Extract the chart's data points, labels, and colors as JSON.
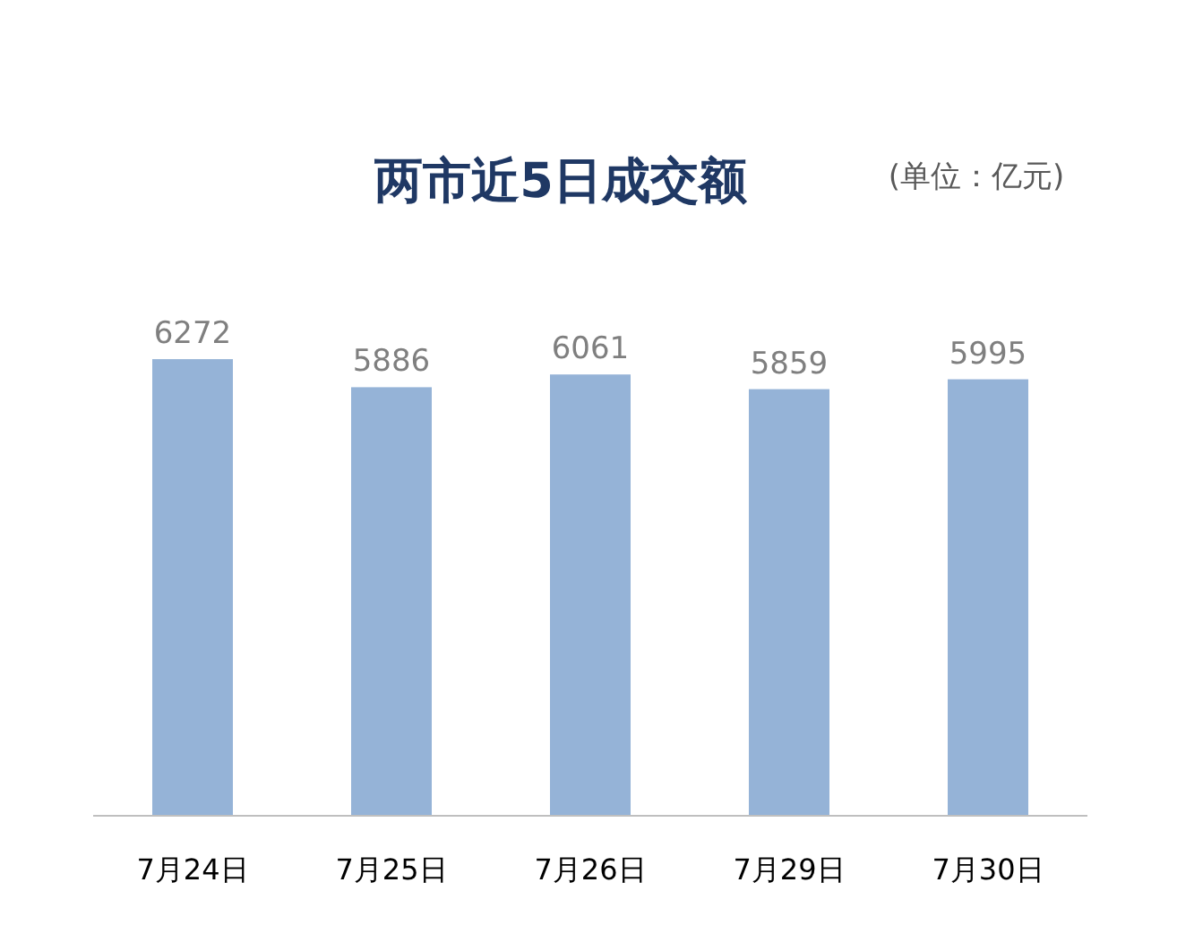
{
  "chart_data": {
    "type": "bar",
    "title": "两市近5日成交额",
    "subtitle": "(单位：亿元)",
    "categories": [
      "7月24日",
      "7月25日",
      "7月26日",
      "7月29日",
      "7月30日"
    ],
    "values": [
      6272,
      5886,
      6061,
      5859,
      5995
    ],
    "color": "#95b3d7",
    "data_labels": true
  }
}
